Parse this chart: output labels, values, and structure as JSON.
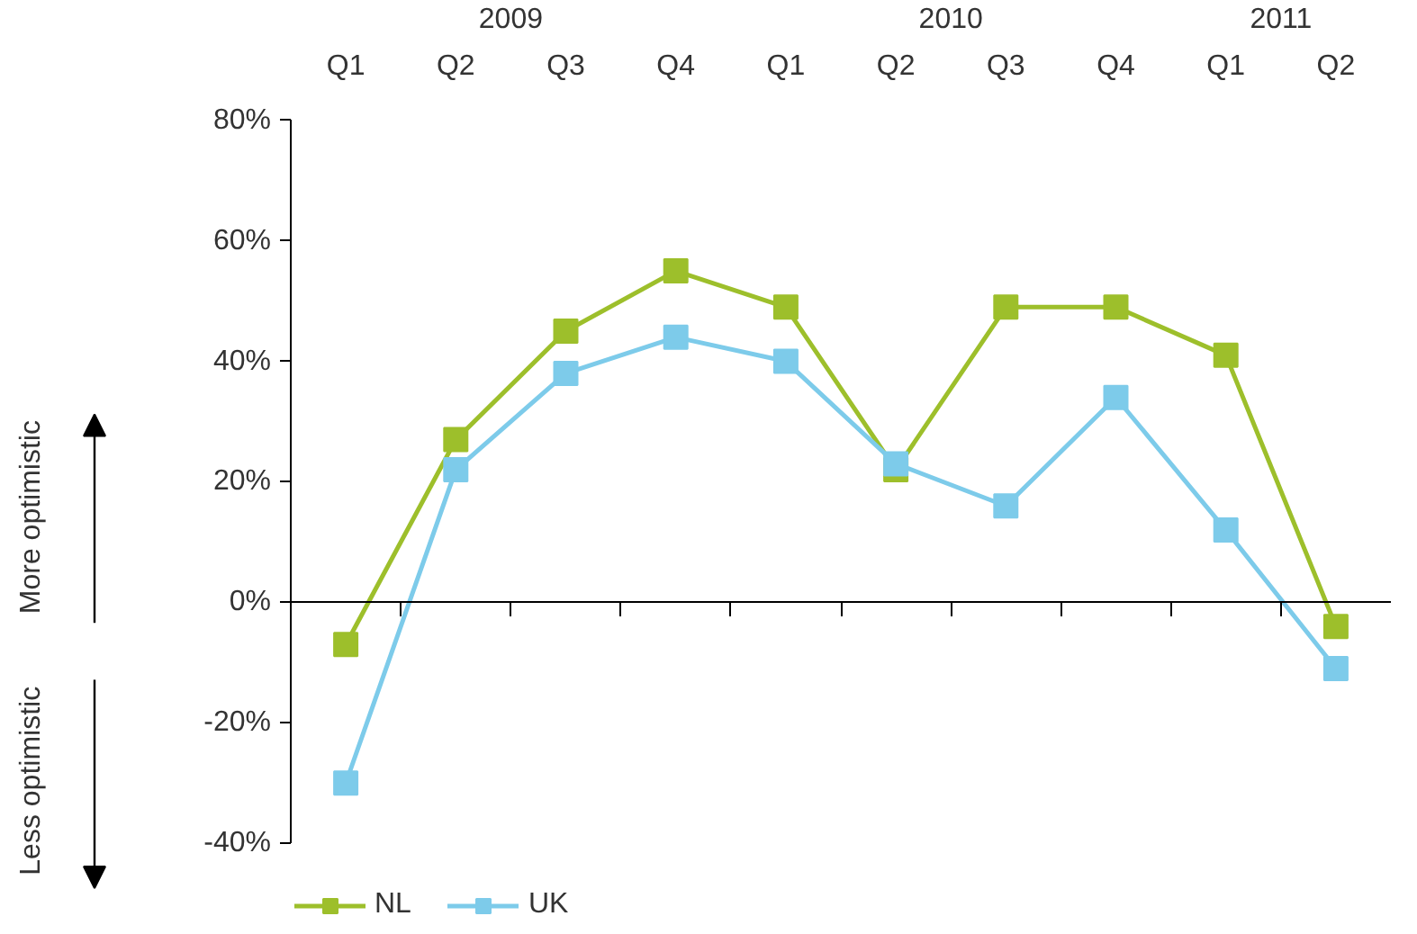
{
  "chart_data": {
    "type": "line",
    "categories": [
      "Q1",
      "Q2",
      "Q3",
      "Q4",
      "Q1",
      "Q2",
      "Q3",
      "Q4",
      "Q1",
      "Q2"
    ],
    "series": [
      {
        "name": "NL",
        "color": "#9dbf2b",
        "values": [
          -7,
          27,
          45,
          55,
          49,
          22,
          49,
          49,
          41,
          -4
        ]
      },
      {
        "name": "UK",
        "color": "#7dcbea",
        "values": [
          -30,
          22,
          38,
          44,
          40,
          23,
          16,
          34,
          12,
          -11
        ]
      }
    ],
    "ylim": [
      -40,
      80
    ],
    "yticks": [
      {
        "value": -40,
        "label": "-40%"
      },
      {
        "value": -20,
        "label": "-20%"
      },
      {
        "value": 0,
        "label": "0%"
      },
      {
        "value": 20,
        "label": "20%"
      },
      {
        "value": 40,
        "label": "40%"
      },
      {
        "value": 60,
        "label": "60%"
      },
      {
        "value": 80,
        "label": "80%"
      }
    ],
    "annotations": [
      "2009",
      "2010",
      "2011",
      "More optimistic",
      "Less optimistic"
    ],
    "legend": "bottom",
    "marker": "square",
    "line_style": "solid"
  }
}
